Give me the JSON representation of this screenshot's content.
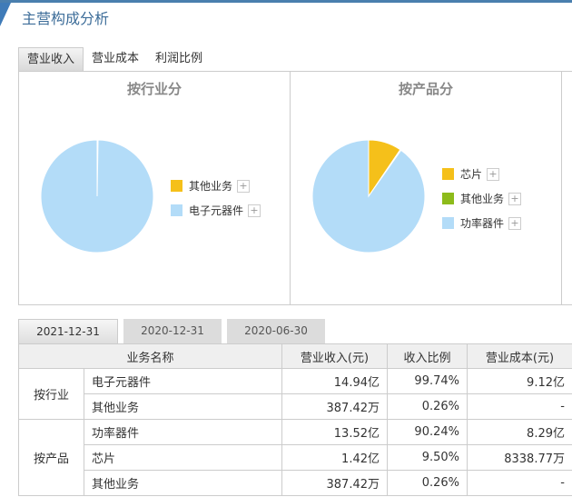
{
  "title": "主营构成分析",
  "tabs": [
    "营业收入",
    "营业成本",
    "利润比例"
  ],
  "charts": [
    {
      "title": "按行业分",
      "items": [
        {
          "name": "其他业务",
          "value": 0.26,
          "color": "#f5c01a"
        },
        {
          "name": "电子元器件",
          "value": 99.74,
          "color": "#b3dcf8"
        }
      ]
    },
    {
      "title": "按产品分",
      "items": [
        {
          "name": "芯片",
          "value": 9.5,
          "color": "#f5c01a"
        },
        {
          "name": "其他业务",
          "value": 0.26,
          "color": "#8dbb1b"
        },
        {
          "name": "功率器件",
          "value": 90.24,
          "color": "#b3dcf8"
        }
      ]
    }
  ],
  "plus": "+",
  "date_tabs": [
    "2021-12-31",
    "2020-12-31",
    "2020-06-30"
  ],
  "table": {
    "headers": [
      "业务名称",
      "营业收入(元)",
      "收入比例",
      "营业成本(元)"
    ],
    "groups": [
      {
        "name": "按行业",
        "rows": [
          [
            "电子元器件",
            "14.94亿",
            "99.74%",
            "9.12亿"
          ],
          [
            "其他业务",
            "387.42万",
            "0.26%",
            "-"
          ]
        ]
      },
      {
        "name": "按产品",
        "rows": [
          [
            "功率器件",
            "13.52亿",
            "90.24%",
            "8.29亿"
          ],
          [
            "芯片",
            "1.42亿",
            "9.50%",
            "8338.77万"
          ],
          [
            "其他业务",
            "387.42万",
            "0.26%",
            "-"
          ]
        ]
      }
    ]
  }
}
